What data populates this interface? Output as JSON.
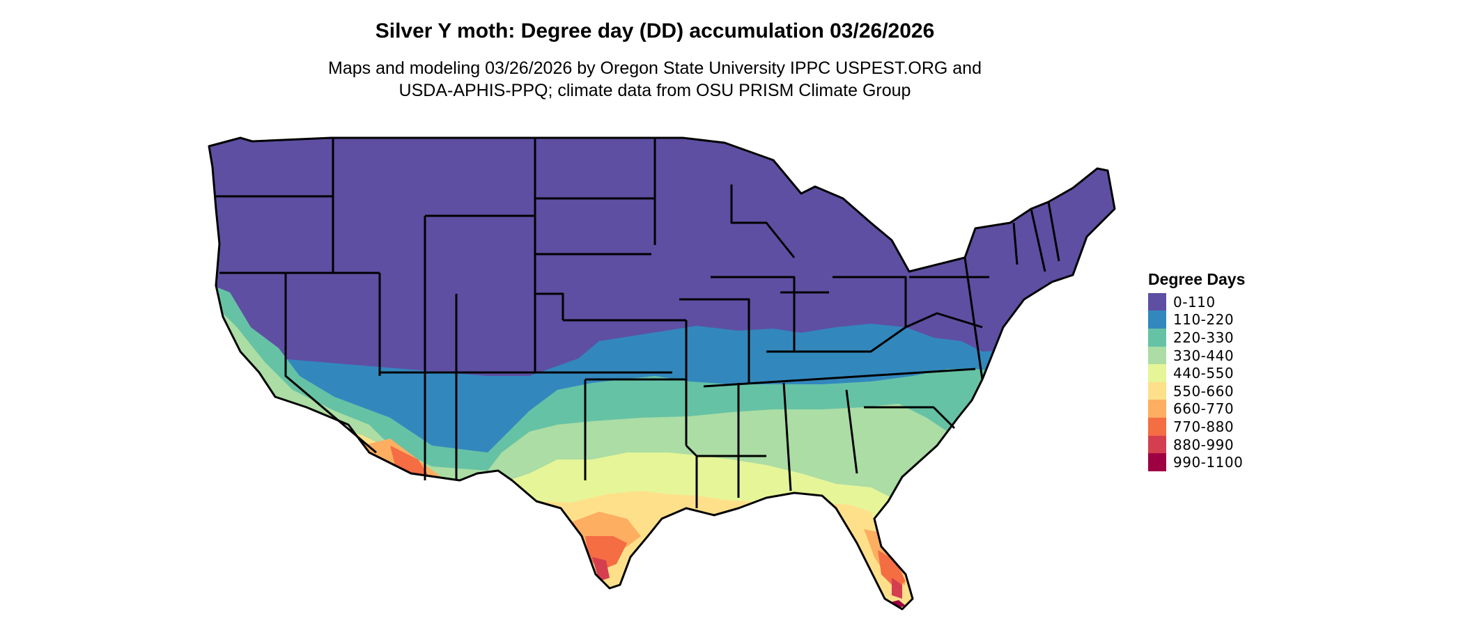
{
  "map": {
    "title": "Silver Y moth: Degree day (DD) accumulation 03/26/2026",
    "subtitle_line1": "Maps and modeling 03/26/2026 by Oregon State University IPPC USPEST.ORG and",
    "subtitle_line2": "USDA-APHIS-PPQ; climate data from OSU PRISM Climate Group",
    "region": "Contiguous United States",
    "basemap": "state boundaries",
    "legend": {
      "title": "Degree Days",
      "placement": "right",
      "classes": [
        {
          "label": "0-110",
          "color": "#5E4FA2"
        },
        {
          "label": "110-220",
          "color": "#3288BD"
        },
        {
          "label": "220-330",
          "color": "#66C2A5"
        },
        {
          "label": "330-440",
          "color": "#ABDDA4"
        },
        {
          "label": "440-550",
          "color": "#E6F598"
        },
        {
          "label": "550-660",
          "color": "#FEE08B"
        },
        {
          "label": "660-770",
          "color": "#FDAE61"
        },
        {
          "label": "770-880",
          "color": "#F46D43"
        },
        {
          "label": "880-990",
          "color": "#D53E4F"
        },
        {
          "label": "990-1100",
          "color": "#9E0142"
        }
      ]
    }
  }
}
